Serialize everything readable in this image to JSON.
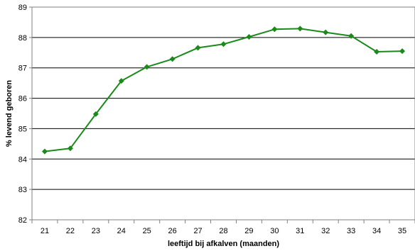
{
  "chart_data": {
    "type": "line",
    "xlabel": "leeftijd bij afkalven (maanden)",
    "ylabel": "% levend geboren",
    "categories": [
      "21",
      "22",
      "23",
      "24",
      "25",
      "26",
      "27",
      "28",
      "29",
      "30",
      "31",
      "32",
      "33",
      "34",
      "35"
    ],
    "series": [
      {
        "values": [
          84.25,
          84.35,
          85.48,
          86.57,
          87.03,
          87.29,
          87.66,
          87.78,
          88.02,
          88.27,
          88.29,
          88.17,
          88.05,
          87.53,
          87.55
        ],
        "color": "#1a8a1a",
        "marker": "diamond"
      }
    ],
    "ylim": [
      82,
      89
    ],
    "yticks": [
      "82",
      "83",
      "84",
      "85",
      "86",
      "87",
      "88",
      "89"
    ],
    "grid": "horizontal",
    "legend": "none",
    "plot_border_color": "#808080",
    "grid_color": "#000000"
  }
}
